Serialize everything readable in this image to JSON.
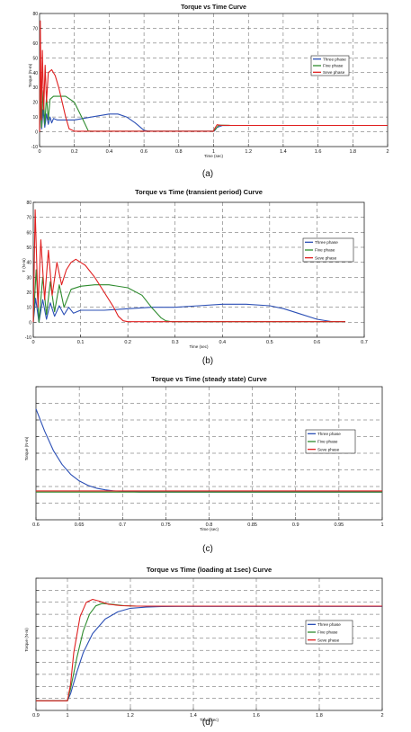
{
  "colors": {
    "three": "#2b4fb5",
    "five": "#2e8b2e",
    "seven": "#e02020",
    "grid": "#555555",
    "frame": "#222222"
  },
  "legend_labels": [
    "Three phase",
    "Five phase",
    "Seve phase"
  ],
  "chart_data": [
    {
      "id": "a",
      "type": "line",
      "title": "Torque vs Time Curve",
      "caption": "(a)",
      "xlabel": "Time (sec)",
      "ylabel": "Torque (N-m)",
      "xlim": [
        0,
        2
      ],
      "ylim": [
        -10,
        80
      ],
      "xticks": [
        0,
        0.2,
        0.4,
        0.6,
        0.8,
        1,
        1.2,
        1.4,
        1.6,
        1.8,
        2
      ],
      "xtick_labels": [
        "0",
        "0.2",
        "0.4",
        "0.6",
        "0.8",
        "1",
        "1.2",
        "1.4",
        "1.6",
        "1.8",
        "2"
      ],
      "yticks": [
        -10,
        0,
        10,
        20,
        30,
        40,
        50,
        60,
        70,
        80
      ],
      "ytick_labels": [
        "-10",
        "0",
        "10",
        "20",
        "30",
        "40",
        "50",
        "60",
        "70",
        "80"
      ],
      "grid": true,
      "legend_position": "right",
      "series": [
        {
          "name": "Three phase",
          "color_key": "three",
          "x": [
            0,
            0.005,
            0.012,
            0.02,
            0.03,
            0.04,
            0.05,
            0.06,
            0.07,
            0.08,
            0.1,
            0.15,
            0.2,
            0.3,
            0.4,
            0.45,
            0.5,
            0.55,
            0.6,
            0.62,
            0.65,
            1.0,
            1.005,
            1.02,
            1.05,
            1.1,
            1.2,
            2.0
          ],
          "y": [
            0,
            18,
            2,
            15,
            3,
            12,
            5,
            10,
            6,
            9,
            8,
            8,
            8,
            10,
            12,
            12,
            10,
            6,
            1,
            0.5,
            0.4,
            0.4,
            0.6,
            3.0,
            4.2,
            4.3,
            4.3,
            4.3
          ]
        },
        {
          "name": "Five phase",
          "color_key": "five",
          "x": [
            0,
            0.006,
            0.012,
            0.02,
            0.03,
            0.04,
            0.05,
            0.06,
            0.08,
            0.1,
            0.15,
            0.2,
            0.25,
            0.28,
            0.3,
            1.0,
            1.005,
            1.03,
            1.06,
            1.1,
            2.0
          ],
          "y": [
            0,
            32,
            3,
            28,
            5,
            24,
            8,
            22,
            24,
            24,
            24,
            20,
            8,
            0.5,
            0.4,
            0.4,
            1,
            4.5,
            4.4,
            4.3,
            4.3
          ]
        },
        {
          "name": "Seve phase",
          "color_key": "seven",
          "x": [
            0,
            0.004,
            0.01,
            0.016,
            0.024,
            0.032,
            0.04,
            0.05,
            0.07,
            0.09,
            0.11,
            0.13,
            0.15,
            0.17,
            0.2,
            1.0,
            1.005,
            1.02,
            1.04,
            1.1,
            2.0
          ],
          "y": [
            0,
            75,
            8,
            55,
            15,
            45,
            20,
            40,
            42,
            38,
            30,
            20,
            10,
            2,
            0.4,
            0.4,
            2,
            4.8,
            4.4,
            4.3,
            4.3
          ]
        }
      ]
    },
    {
      "id": "b",
      "type": "line",
      "title": "Torque vs Time (transient period) Curve",
      "caption": "(b)",
      "xlabel": "Time (sec)",
      "ylabel": "T (N-m)",
      "xlim": [
        0,
        0.7
      ],
      "ylim": [
        -10,
        80
      ],
      "xticks": [
        0,
        0.1,
        0.2,
        0.3,
        0.4,
        0.5,
        0.6,
        0.7
      ],
      "xtick_labels": [
        "0",
        "0.1",
        "0.2",
        "0.3",
        "0.4",
        "0.5",
        "0.6",
        "0.7"
      ],
      "yticks": [
        -10,
        0,
        10,
        20,
        30,
        40,
        50,
        60,
        70,
        80
      ],
      "ytick_labels": [
        "-10",
        "0",
        "10",
        "20",
        "30",
        "40",
        "50",
        "60",
        "70",
        "80"
      ],
      "grid": true,
      "legend_position": "right",
      "series": [
        {
          "name": "Three phase",
          "color_key": "three",
          "x": [
            0,
            0.005,
            0.012,
            0.02,
            0.028,
            0.036,
            0.045,
            0.055,
            0.065,
            0.075,
            0.085,
            0.1,
            0.12,
            0.15,
            0.2,
            0.25,
            0.3,
            0.35,
            0.4,
            0.45,
            0.5,
            0.53,
            0.56,
            0.6,
            0.63,
            0.66
          ],
          "y": [
            0,
            16,
            0,
            15,
            2,
            13,
            4,
            11,
            5,
            10,
            6,
            8,
            8,
            8,
            9,
            10,
            10,
            11,
            12,
            12,
            11,
            9,
            6,
            2,
            0.5,
            0.4
          ]
        },
        {
          "name": "Five phase",
          "color_key": "five",
          "x": [
            0,
            0.006,
            0.012,
            0.02,
            0.028,
            0.036,
            0.045,
            0.055,
            0.065,
            0.08,
            0.1,
            0.13,
            0.16,
            0.2,
            0.23,
            0.25,
            0.27,
            0.28,
            0.29,
            0.3,
            0.66
          ],
          "y": [
            0,
            35,
            0,
            30,
            5,
            27,
            7,
            25,
            10,
            22,
            24,
            25,
            25,
            23,
            18,
            10,
            3,
            1,
            0.5,
            0.4,
            0.4
          ]
        },
        {
          "name": "Seve phase",
          "color_key": "seven",
          "x": [
            0,
            0.004,
            0.01,
            0.016,
            0.024,
            0.032,
            0.04,
            0.05,
            0.06,
            0.07,
            0.08,
            0.09,
            0.1,
            0.11,
            0.13,
            0.15,
            0.17,
            0.18,
            0.19,
            0.2,
            0.66
          ],
          "y": [
            0,
            75,
            10,
            55,
            15,
            48,
            18,
            40,
            25,
            35,
            40,
            42,
            40,
            38,
            30,
            20,
            10,
            4,
            1,
            0.4,
            0.4
          ]
        }
      ]
    },
    {
      "id": "c",
      "type": "line",
      "title": "Torque vs Time (steady state) Curve",
      "caption": "(c)",
      "xlabel": "Time (sec)",
      "ylabel": "Torque (N-m)",
      "xlim": [
        0.6,
        1
      ],
      "ylim": [
        -0.6,
        1.8
      ],
      "xticks": [
        0.6,
        0.65,
        0.7,
        0.75,
        0.8,
        0.85,
        0.9,
        0.95,
        1
      ],
      "xtick_labels": [
        "0.6",
        "0.65",
        "0.7",
        "0.75",
        "0.8",
        "0.85",
        "0.9",
        "0.95",
        "1"
      ],
      "yticks": [
        -0.6,
        -0.3,
        0,
        0.3,
        0.6,
        0.9,
        1.2,
        1.5,
        1.8
      ],
      "ytick_labels": [
        "",
        "",
        "",
        "",
        "",
        "",
        "",
        "",
        ""
      ],
      "grid": true,
      "legend_position": "right",
      "series": [
        {
          "name": "Three phase",
          "color_key": "three",
          "x": [
            0.6,
            0.61,
            0.62,
            0.63,
            0.64,
            0.65,
            0.66,
            0.67,
            0.68,
            0.69,
            0.7,
            0.72,
            1.0
          ],
          "y": [
            1.4,
            1.0,
            0.65,
            0.4,
            0.22,
            0.1,
            0.02,
            -0.03,
            -0.06,
            -0.08,
            -0.09,
            -0.1,
            -0.1
          ]
        },
        {
          "name": "Five phase",
          "color_key": "five",
          "x": [
            0.6,
            1.0
          ],
          "y": [
            -0.1,
            -0.1
          ]
        },
        {
          "name": "Seve phase",
          "color_key": "seven",
          "x": [
            0.6,
            1.0
          ],
          "y": [
            -0.08,
            -0.08
          ]
        }
      ]
    },
    {
      "id": "d",
      "type": "line",
      "title": "Torque vs Time (loading at 1sec) Curve",
      "caption": "(d)",
      "xlabel": "Time (sec)",
      "ylabel": "Torque (N-m)",
      "xlim": [
        0.9,
        2
      ],
      "ylim": [
        0,
        5.5
      ],
      "xticks": [
        0.9,
        1,
        1.2,
        1.4,
        1.6,
        1.8,
        2
      ],
      "xtick_labels": [
        "0.9",
        "1",
        "1.2",
        "1.4",
        "1.6",
        "1.8",
        "2"
      ],
      "yticks": [
        0,
        0.5,
        1,
        1.5,
        2,
        2.5,
        3,
        3.5,
        4,
        4.5,
        5,
        5.5
      ],
      "ytick_labels": [
        "",
        "",
        "",
        "",
        "",
        "",
        "",
        "",
        "",
        "",
        "",
        ""
      ],
      "grid": true,
      "legend_position": "right",
      "series": [
        {
          "name": "Three phase",
          "color_key": "three",
          "x": [
            0.9,
            1.0,
            1.01,
            1.03,
            1.05,
            1.08,
            1.12,
            1.16,
            1.2,
            1.25,
            1.3,
            1.35,
            1.4,
            2.0
          ],
          "y": [
            0.4,
            0.4,
            0.7,
            1.6,
            2.4,
            3.2,
            3.8,
            4.1,
            4.25,
            4.3,
            4.32,
            4.33,
            4.33,
            4.33
          ]
        },
        {
          "name": "Five phase",
          "color_key": "five",
          "x": [
            0.9,
            1.0,
            1.01,
            1.03,
            1.05,
            1.07,
            1.09,
            1.11,
            1.14,
            1.18,
            1.22,
            2.0
          ],
          "y": [
            0.4,
            0.4,
            0.9,
            2.2,
            3.3,
            4.0,
            4.35,
            4.45,
            4.42,
            4.36,
            4.34,
            4.34
          ]
        },
        {
          "name": "Seve phase",
          "color_key": "seven",
          "x": [
            0.9,
            1.0,
            1.01,
            1.02,
            1.04,
            1.06,
            1.08,
            1.1,
            1.13,
            1.17,
            1.22,
            2.0
          ],
          "y": [
            0.4,
            0.4,
            1.1,
            2.4,
            3.9,
            4.5,
            4.62,
            4.55,
            4.42,
            4.36,
            4.34,
            4.34
          ]
        }
      ]
    }
  ]
}
